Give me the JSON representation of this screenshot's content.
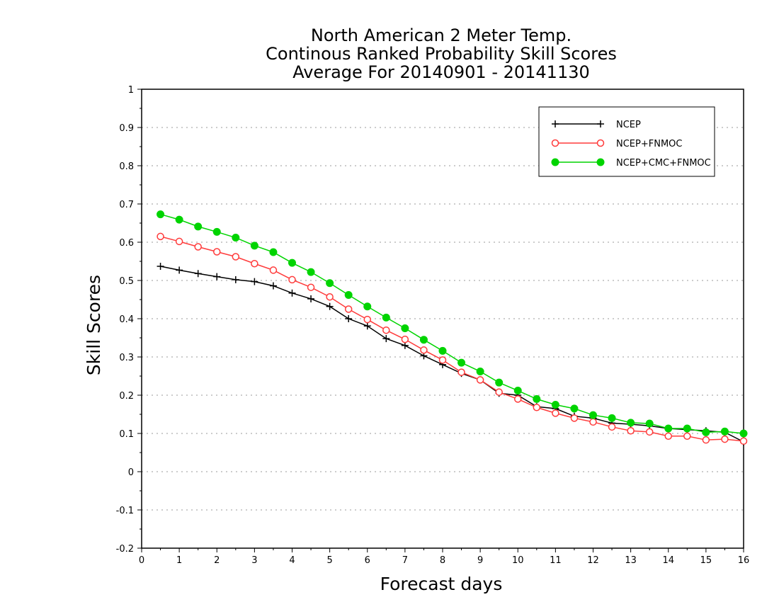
{
  "chart_data": {
    "type": "line",
    "title_lines": [
      "North American 2 Meter Temp.",
      "Continous Ranked Probability Skill Scores",
      "Average For 20140901 - 20141130"
    ],
    "xlabel": "Forecast days",
    "ylabel": "Skill Scores",
    "xlim": [
      0,
      16
    ],
    "ylim": [
      -0.2,
      1
    ],
    "xticks": [
      "0",
      "1",
      "2",
      "3",
      "4",
      "5",
      "6",
      "7",
      "8",
      "9",
      "10",
      "11",
      "12",
      "13",
      "14",
      "15",
      "16"
    ],
    "yticks": [
      "-0.2",
      "-0.1",
      "0",
      "0.1",
      "0.2",
      "0.3",
      "0.4",
      "0.5",
      "0.6",
      "0.7",
      "0.8",
      "0.9",
      "1"
    ],
    "grid": "horizontal dotted",
    "legend_position": "top-right",
    "x": [
      0.5,
      1,
      1.5,
      2,
      2.5,
      3,
      3.5,
      4,
      4.5,
      5,
      5.5,
      6,
      6.5,
      7,
      7.5,
      8,
      8.5,
      9,
      9.5,
      10,
      10.5,
      11,
      11.5,
      12,
      12.5,
      13,
      13.5,
      14,
      14.5,
      15,
      15.5,
      16
    ],
    "series": [
      {
        "name": "NCEP",
        "color": "#000000",
        "marker": "plus",
        "values": [
          0.537,
          0.527,
          0.518,
          0.51,
          0.502,
          0.497,
          0.486,
          0.467,
          0.452,
          0.432,
          0.4,
          0.381,
          0.348,
          0.33,
          0.303,
          0.28,
          0.257,
          0.24,
          0.205,
          0.2,
          0.17,
          0.165,
          0.145,
          0.14,
          0.127,
          0.124,
          0.12,
          0.113,
          0.11,
          0.107,
          0.103,
          0.078
        ]
      },
      {
        "name": "NCEP+FNMOC",
        "color": "#ff3b3b",
        "marker": "open-circle",
        "values": [
          0.615,
          0.602,
          0.588,
          0.575,
          0.562,
          0.544,
          0.527,
          0.502,
          0.482,
          0.457,
          0.425,
          0.398,
          0.37,
          0.346,
          0.318,
          0.292,
          0.26,
          0.24,
          0.208,
          0.19,
          0.168,
          0.153,
          0.14,
          0.13,
          0.117,
          0.107,
          0.104,
          0.093,
          0.093,
          0.083,
          0.085,
          0.08
        ]
      },
      {
        "name": "NCEP+CMC+FNMOC",
        "color": "#00d400",
        "marker": "filled-circle",
        "values": [
          0.673,
          0.659,
          0.641,
          0.627,
          0.612,
          0.591,
          0.574,
          0.546,
          0.522,
          0.493,
          0.462,
          0.432,
          0.403,
          0.375,
          0.345,
          0.316,
          0.285,
          0.262,
          0.233,
          0.212,
          0.19,
          0.175,
          0.165,
          0.148,
          0.14,
          0.128,
          0.126,
          0.113,
          0.113,
          0.103,
          0.105,
          0.1
        ]
      }
    ]
  }
}
